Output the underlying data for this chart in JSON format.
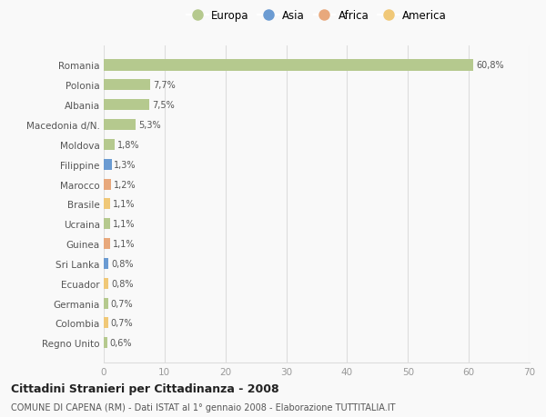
{
  "countries": [
    "Romania",
    "Polonia",
    "Albania",
    "Macedonia d/N.",
    "Moldova",
    "Filippine",
    "Marocco",
    "Brasile",
    "Ucraina",
    "Guinea",
    "Sri Lanka",
    "Ecuador",
    "Germania",
    "Colombia",
    "Regno Unito"
  ],
  "values": [
    60.8,
    7.7,
    7.5,
    5.3,
    1.8,
    1.3,
    1.2,
    1.1,
    1.1,
    1.1,
    0.8,
    0.8,
    0.7,
    0.7,
    0.6
  ],
  "labels": [
    "60,8%",
    "7,7%",
    "7,5%",
    "5,3%",
    "1,8%",
    "1,3%",
    "1,2%",
    "1,1%",
    "1,1%",
    "1,1%",
    "0,8%",
    "0,8%",
    "0,7%",
    "0,7%",
    "0,6%"
  ],
  "continents": [
    "Europa",
    "Europa",
    "Europa",
    "Europa",
    "Europa",
    "Asia",
    "Africa",
    "America",
    "Europa",
    "Africa",
    "Asia",
    "America",
    "Europa",
    "America",
    "Europa"
  ],
  "continent_colors": {
    "Europa": "#b5c98e",
    "Asia": "#6b9bd2",
    "Africa": "#e8a87c",
    "America": "#f0c878"
  },
  "legend_order": [
    "Europa",
    "Asia",
    "Africa",
    "America"
  ],
  "legend_colors": [
    "#b5c98e",
    "#6b9bd2",
    "#e8a87c",
    "#f0c878"
  ],
  "xlim": [
    0,
    70
  ],
  "xticks": [
    0,
    10,
    20,
    30,
    40,
    50,
    60,
    70
  ],
  "title": "Cittadini Stranieri per Cittadinanza - 2008",
  "subtitle": "COMUNE DI CAPENA (RM) - Dati ISTAT al 1° gennaio 2008 - Elaborazione TUTTITALIA.IT",
  "bg_color": "#f9f9f9",
  "grid_color": "#dddddd",
  "bar_height": 0.55
}
